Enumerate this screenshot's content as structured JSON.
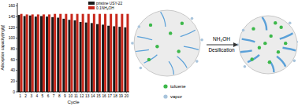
{
  "chart_data": {
    "type": "bar",
    "y_label": "Adsorption capacity(mg/g)",
    "x_label": "Cycle",
    "categories": [
      "1",
      "2",
      "3",
      "4",
      "5",
      "6",
      "7",
      "8",
      "9",
      "10",
      "11",
      "12",
      "13",
      "14",
      "15",
      "16",
      "17",
      "18",
      "19",
      "20"
    ],
    "series": [
      {
        "name": "pristine USY-22",
        "color": "#1a1a1a",
        "values": [
          143,
          141,
          142,
          140,
          141,
          140,
          139,
          138,
          136,
          134,
          133,
          130,
          129,
          128,
          126,
          125,
          123,
          122,
          121,
          120
        ]
      },
      {
        "name": "0.1NH₄OH",
        "color": "#c8281c",
        "values": [
          145,
          144,
          144,
          144,
          144,
          144,
          145,
          145,
          145,
          145,
          145,
          145,
          145,
          145,
          145,
          145,
          145,
          145,
          145,
          145
        ]
      }
    ],
    "ylim": [
      0,
      165
    ],
    "yticks": [
      0,
      20,
      40,
      60,
      80,
      100,
      120,
      140,
      160
    ],
    "grid": false,
    "legend": "upper right"
  },
  "diagram": {
    "arrow_top": "NH₄OH",
    "arrow_bottom": "Desilication",
    "legend": [
      {
        "label": "toluene",
        "color": "#3cb84a"
      },
      {
        "label": "vapor",
        "color": "#a8c4dc"
      }
    ]
  }
}
